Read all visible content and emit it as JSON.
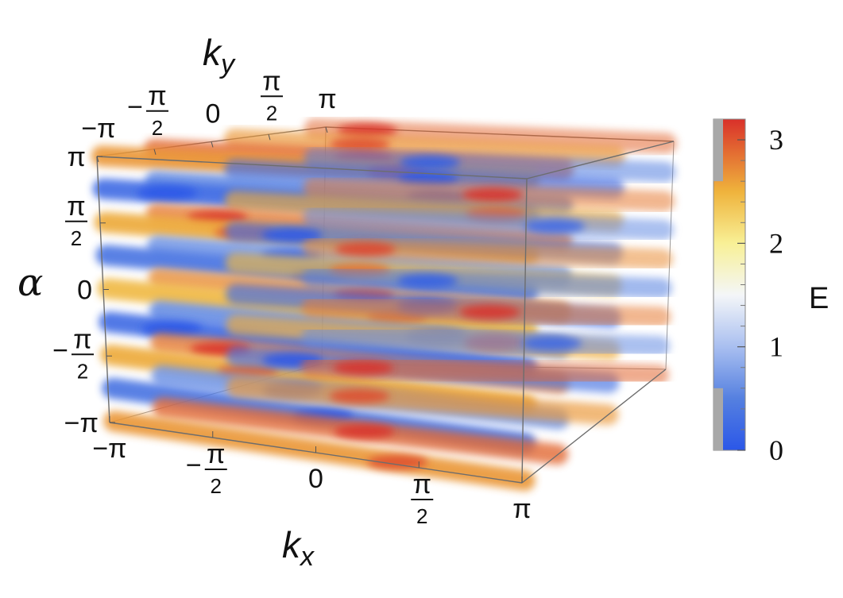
{
  "chart_data": {
    "type": "heatmap",
    "subtype": "3d-density",
    "axes": {
      "x": {
        "label": "k",
        "sub": "x",
        "range": [
          -3.1416,
          3.1416
        ],
        "ticks": [
          {
            "top": "−π",
            "num": "",
            "den": "",
            "sign": "",
            "value": -3.1416
          },
          {
            "top": "π",
            "num": "π",
            "den": "2",
            "sign": "−",
            "value": -1.5708
          },
          {
            "top": "0",
            "num": "",
            "den": "",
            "sign": "",
            "value": 0
          },
          {
            "top": "π",
            "num": "π",
            "den": "2",
            "sign": "",
            "value": 1.5708
          },
          {
            "top": "π",
            "num": "",
            "den": "",
            "sign": "",
            "value": 3.1416
          }
        ]
      },
      "y": {
        "label": "k",
        "sub": "y",
        "range": [
          -3.1416,
          3.1416
        ],
        "ticks": [
          {
            "label": "−π",
            "frac": false,
            "sign": "",
            "value": -3.1416
          },
          {
            "label": "π",
            "frac": true,
            "sign": "−",
            "value": -1.5708
          },
          {
            "label": "0",
            "frac": false,
            "sign": "",
            "value": 0
          },
          {
            "label": "π",
            "frac": true,
            "sign": "",
            "value": 1.5708
          },
          {
            "label": "π",
            "frac": false,
            "sign": "",
            "value": 3.1416
          }
        ]
      },
      "z": {
        "label": "α",
        "range": [
          -3.1416,
          3.1416
        ],
        "ticks": [
          {
            "label": "π",
            "frac": false,
            "sign": "",
            "value": 3.1416
          },
          {
            "label": "π",
            "frac": true,
            "sign": "",
            "value": 1.5708
          },
          {
            "label": "0",
            "frac": false,
            "sign": "",
            "value": 0
          },
          {
            "label": "π",
            "frac": true,
            "sign": "−",
            "value": -1.5708
          },
          {
            "label": "−π",
            "frac": false,
            "sign": "",
            "value": -3.1416
          }
        ]
      }
    },
    "colorbar": {
      "label": "E",
      "range": [
        0,
        3.2
      ],
      "ticks": [
        "0",
        "1",
        "2",
        "3"
      ],
      "tick_values": [
        0,
        1,
        2,
        3
      ],
      "stops": [
        {
          "value": 0.0,
          "color": "#2b57e8"
        },
        {
          "value": 0.5,
          "color": "#5580e0"
        },
        {
          "value": 1.0,
          "color": "#a9bff0"
        },
        {
          "value": 1.5,
          "color": "#f4f6f8"
        },
        {
          "value": 2.0,
          "color": "#f8f096"
        },
        {
          "value": 2.5,
          "color": "#efb33c"
        },
        {
          "value": 3.2,
          "color": "#d9302a"
        }
      ],
      "shaded_ranges": [
        [
          0,
          0.6
        ],
        [
          2.6,
          3.2
        ]
      ]
    },
    "layers": [
      {
        "alpha": 3.14,
        "value": 2.8
      },
      {
        "alpha": 2.36,
        "value": 0.4
      },
      {
        "alpha": 1.57,
        "value": 2.7
      },
      {
        "alpha": 0.79,
        "value": 0.5
      },
      {
        "alpha": 0.0,
        "value": 2.6
      },
      {
        "alpha": -0.79,
        "value": 0.4
      },
      {
        "alpha": -1.57,
        "value": 2.7
      },
      {
        "alpha": -2.36,
        "value": 0.5
      },
      {
        "alpha": -3.14,
        "value": 2.8
      }
    ],
    "colors": {
      "low": "#3f6ee6",
      "mid": "#f4f6f8",
      "high": "#e8a02a",
      "peak": "#d43a24"
    }
  }
}
